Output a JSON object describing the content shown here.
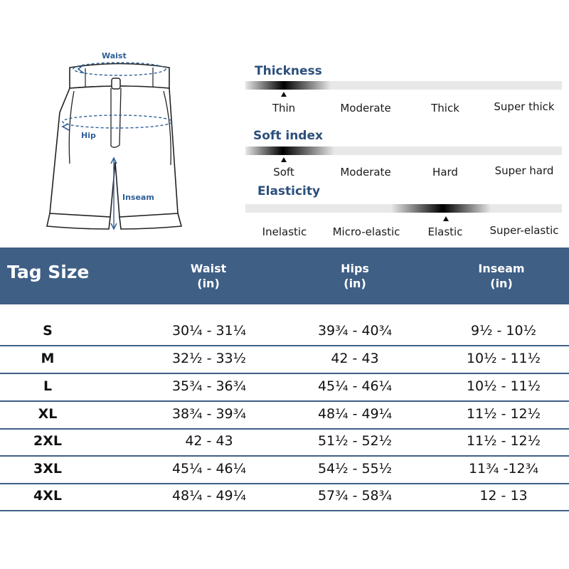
{
  "diagram": {
    "labels": {
      "waist": "Waist",
      "hip": "Hip",
      "inseam": "Inseam"
    }
  },
  "scales": [
    {
      "title": "Thickness",
      "options": [
        "Thin",
        "Moderate",
        "Thick",
        "Super thick"
      ],
      "selected": "Thin"
    },
    {
      "title": "Soft index",
      "options": [
        "Soft",
        "Moderate",
        "Hard",
        "Super hard"
      ],
      "selected": "Soft"
    },
    {
      "title": "Elasticity",
      "options": [
        "Inelastic",
        "Micro-elastic",
        "Elastic",
        "Super-elastic"
      ],
      "selected": "Elastic"
    }
  ],
  "size_table": {
    "headers": {
      "tag_size": "Tag Size",
      "waist": "Waist",
      "hips": "Hips",
      "inseam": "Inseam",
      "unit": "(in)"
    },
    "rows": [
      {
        "size": "S",
        "waist": "30¼ - 31¼",
        "hips": "39¾ - 40¾",
        "inseam": "9½ - 10½"
      },
      {
        "size": "M",
        "waist": "32½ - 33½",
        "hips": "42 - 43",
        "inseam": "10½ - 11½"
      },
      {
        "size": "L",
        "waist": "35¾ - 36¾",
        "hips": "45¼ - 46¼",
        "inseam": "10½ - 11½"
      },
      {
        "size": "XL",
        "waist": "38¾ - 39¾",
        "hips": "48¼ - 49¼",
        "inseam": "11½ - 12½"
      },
      {
        "size": "2XL",
        "waist": "42 - 43",
        "hips": "51½ - 52½",
        "inseam": "11½ - 12½"
      },
      {
        "size": "3XL",
        "waist": "45¼ - 46¼",
        "hips": "54½ - 55½",
        "inseam": "11¾ -12¾"
      },
      {
        "size": "4XL",
        "waist": "48¼ - 49¼",
        "hips": "57¾ - 58¾",
        "inseam": "12 - 13"
      }
    ]
  },
  "colors": {
    "header_bg": "#3f5f85",
    "title_blue": "#2c4f7c",
    "measure_blue": "#2f5f98"
  }
}
